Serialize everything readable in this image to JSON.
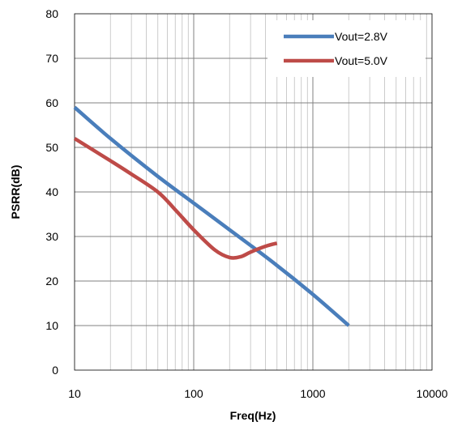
{
  "chart_data": {
    "type": "line",
    "title": "",
    "xlabel": "Freq(Hz)",
    "ylabel": "PSRR(dB)",
    "xscale": "log",
    "xlim": [
      10,
      10000
    ],
    "ylim": [
      0,
      80
    ],
    "grid": true,
    "legend_position": "top-right",
    "x_ticks": [
      "10",
      "100",
      "1000",
      "10000"
    ],
    "y_ticks": [
      "0",
      "10",
      "20",
      "30",
      "40",
      "50",
      "60",
      "70",
      "80"
    ],
    "series": [
      {
        "name": "Vout=2.8V",
        "color": "#4a7ebb",
        "x": [
          10,
          20,
          50,
          100,
          200,
          300,
          500,
          1000,
          2000
        ],
        "y": [
          59,
          52,
          43.5,
          37.5,
          31.5,
          28,
          23.5,
          17,
          10
        ]
      },
      {
        "name": "Vout=5.0V",
        "color": "#be4b48",
        "x": [
          10,
          20,
          30,
          50,
          70,
          100,
          150,
          200,
          250,
          300,
          400,
          500
        ],
        "y": [
          52,
          47,
          44,
          40,
          36,
          31.5,
          27,
          25.3,
          25.5,
          26.5,
          27.8,
          28.5
        ]
      }
    ]
  }
}
